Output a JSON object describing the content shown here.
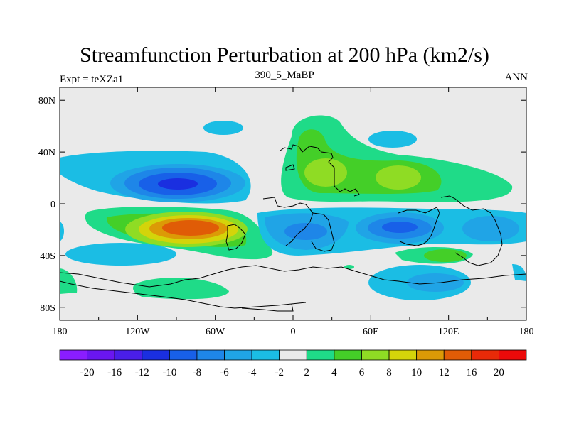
{
  "chart_data": {
    "type": "heatmap",
    "title": "Streamfunction Perturbation at 200 hPa (km2/s)",
    "left_string": "Expt = teXZa1",
    "center_string": "390_5_MaBP",
    "right_string": "ANN",
    "x_axis": {
      "range": [
        -180,
        180
      ],
      "ticks": [
        -180,
        -120,
        -60,
        0,
        60,
        120,
        180
      ],
      "tick_labels": [
        "180",
        "120W",
        "60W",
        "0",
        "60E",
        "120E",
        "180"
      ]
    },
    "y_axis": {
      "range": [
        -90,
        90
      ],
      "ticks": [
        80,
        40,
        0,
        -40,
        -80
      ],
      "tick_labels": [
        "80N",
        "40N",
        "0",
        "40S",
        "80S"
      ]
    },
    "colorbar": {
      "labels": [
        "-20",
        "-16",
        "-12",
        "-10",
        "-8",
        "-6",
        "-4",
        "-2",
        "2",
        "4",
        "6",
        "8",
        "10",
        "12",
        "16",
        "20"
      ],
      "colors": [
        "#8a1dff",
        "#6a16f0",
        "#4a1ee8",
        "#1a2fe0",
        "#1860e8",
        "#1e86e8",
        "#20a4e6",
        "#1bbde4",
        "#eaeaea",
        "#1fdb88",
        "#44cf28",
        "#8fdc24",
        "#d4d40a",
        "#dc9a06",
        "#e05c06",
        "#e82a08",
        "#ec0a0a"
      ],
      "background_color": "#eaeaea"
    },
    "features": [
      {
        "name": "negative center north pacific",
        "lon": -98,
        "lat": 15,
        "min_level": -12
      },
      {
        "name": "positive center south pacific",
        "lon": -75,
        "lat": -19,
        "max_level": 16
      },
      {
        "name": "positive ridge eurasia",
        "lon": 45,
        "lat": 30,
        "max_level": 8
      },
      {
        "name": "negative trough indian ocean",
        "lon": 80,
        "lat": -18,
        "min_level": -10
      },
      {
        "name": "positive center south indian ocean",
        "lon": 120,
        "lat": -40,
        "max_level": 6
      }
    ]
  }
}
